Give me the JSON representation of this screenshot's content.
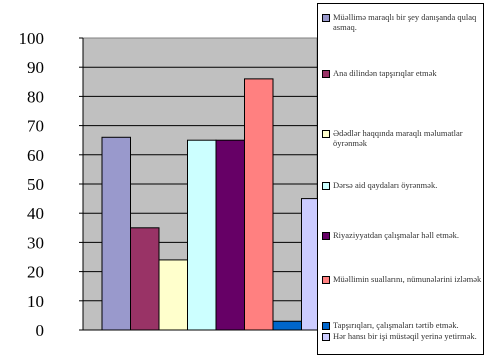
{
  "chart_data": {
    "type": "bar",
    "ylim": [
      0,
      100
    ],
    "yticks": [
      "100",
      "90",
      "80",
      "70",
      "60",
      "50",
      "40",
      "30",
      "20",
      "10",
      "0"
    ],
    "grid": true,
    "legend_position": "right",
    "series": [
      {
        "name": "Müəllimə maraqlı bir şey danışanda qulaq asmaq.",
        "value": 66,
        "color": "#9999cc"
      },
      {
        "name": "Ana dilindən tapşırıqlar etmək",
        "value": 35,
        "color": "#993366"
      },
      {
        "name": "Ədədlər haqqında maraqlı məlumatlar öyrənmək",
        "value": 24,
        "color": "#ffffcc"
      },
      {
        "name": "Dərsə aid qaydaları öyrənmək.",
        "value": 65,
        "color": "#ccffff"
      },
      {
        "name": "Riyaziyyatdan çalışmalar həll etmək.",
        "value": 65,
        "color": "#660066"
      },
      {
        "name": "Müəllimin suallarını, nümunələrini izləmək",
        "value": 86,
        "color": "#ff8080"
      },
      {
        "name": "Tapşırıqları, çalışmaları tərtib etmək.",
        "value": 3,
        "color": "#0066cc"
      },
      {
        "name": "Hər hansı bir işi müstəqil yerinə yetirmək.",
        "value": 45,
        "color": "#ccccff"
      }
    ]
  }
}
